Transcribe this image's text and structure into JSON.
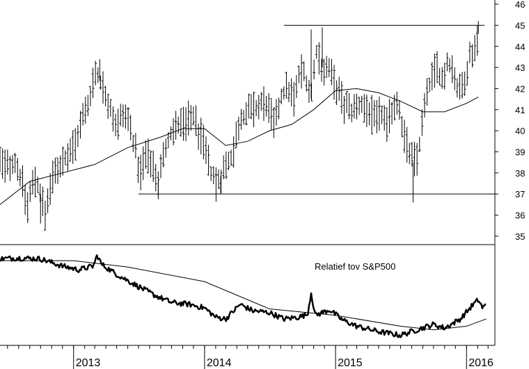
{
  "chart_data": [
    {
      "type": "ohlc",
      "panel": "price",
      "x_axis": {
        "type": "date",
        "range": [
          "2012-06-10",
          "2016-03-20"
        ],
        "tick_labels": [
          "2013",
          "2014",
          "2015",
          "2016"
        ],
        "tick_dates": [
          "2013-01-01",
          "2014-01-01",
          "2015-01-01",
          "2016-01-01"
        ]
      },
      "y_axis": {
        "range": [
          34.6,
          46.2
        ],
        "side": "right",
        "ticks": [
          35,
          36,
          37,
          38,
          39,
          40,
          41,
          42,
          43,
          44,
          45,
          46
        ]
      },
      "grid": false,
      "series": [
        {
          "kind": "price_bars",
          "anchors": [
            [
              "2012-06-10",
              38.5
            ],
            [
              "2012-07-01",
              38.3
            ],
            [
              "2012-07-20",
              38.6
            ],
            [
              "2012-08-10",
              37.6
            ],
            [
              "2012-08-25",
              36.4
            ],
            [
              "2012-09-15",
              37.8
            ],
            [
              "2012-10-01",
              37.0
            ],
            [
              "2012-10-14",
              36.0
            ],
            [
              "2012-10-28",
              37.4
            ],
            [
              "2012-11-15",
              38.2
            ],
            [
              "2012-12-10",
              38.8
            ],
            [
              "2013-01-05",
              39.4
            ],
            [
              "2013-01-25",
              40.5
            ],
            [
              "2013-02-10",
              41.2
            ],
            [
              "2013-03-01",
              42.8
            ],
            [
              "2013-03-20",
              42.2
            ],
            [
              "2013-04-10",
              41.3
            ],
            [
              "2013-05-01",
              40.2
            ],
            [
              "2013-05-20",
              40.7
            ],
            [
              "2013-06-05",
              40.4
            ],
            [
              "2013-06-20",
              39.2
            ],
            [
              "2013-07-05",
              38.0
            ],
            [
              "2013-07-20",
              38.9
            ],
            [
              "2013-08-10",
              38.5
            ],
            [
              "2013-08-25",
              37.6
            ],
            [
              "2013-09-20",
              39.6
            ],
            [
              "2013-10-10",
              40.1
            ],
            [
              "2013-11-10",
              40.4
            ],
            [
              "2013-12-01",
              40.7
            ],
            [
              "2014-01-01",
              39.2
            ],
            [
              "2014-01-20",
              37.9
            ],
            [
              "2014-02-05",
              37.5
            ],
            [
              "2014-02-25",
              38.2
            ],
            [
              "2014-03-20",
              38.9
            ],
            [
              "2014-04-10",
              40.6
            ],
            [
              "2014-05-05",
              40.9
            ],
            [
              "2014-05-25",
              41.0
            ],
            [
              "2014-06-20",
              41.4
            ],
            [
              "2014-07-15",
              40.2
            ],
            [
              "2014-08-01",
              41.5
            ],
            [
              "2014-08-20",
              42.0
            ],
            [
              "2014-09-10",
              41.5
            ],
            [
              "2014-09-25",
              42.9
            ],
            [
              "2014-10-10",
              42.5
            ],
            [
              "2014-10-25",
              41.5
            ],
            [
              "2014-11-10",
              43.9
            ],
            [
              "2014-11-25",
              43.0
            ],
            [
              "2014-12-15",
              42.8
            ],
            [
              "2015-01-05",
              42.0
            ],
            [
              "2015-01-25",
              41.2
            ],
            [
              "2015-02-15",
              40.9
            ],
            [
              "2015-03-10",
              41.2
            ],
            [
              "2015-04-01",
              41.1
            ],
            [
              "2015-04-20",
              40.5
            ],
            [
              "2015-05-10",
              40.8
            ],
            [
              "2015-05-25",
              40.2
            ],
            [
              "2015-06-10",
              41.2
            ],
            [
              "2015-06-25",
              41.5
            ],
            [
              "2015-07-05",
              40.3
            ],
            [
              "2015-07-20",
              39.2
            ],
            [
              "2015-08-05",
              38.5
            ],
            [
              "2015-08-20",
              38.9
            ],
            [
              "2015-09-05",
              41.0
            ],
            [
              "2015-09-20",
              42.1
            ],
            [
              "2015-10-10",
              43.1
            ],
            [
              "2015-10-25",
              42.4
            ],
            [
              "2015-11-10",
              43.3
            ],
            [
              "2015-11-25",
              42.9
            ],
            [
              "2015-12-10",
              41.7
            ],
            [
              "2015-12-25",
              42.4
            ],
            [
              "2016-01-10",
              43.5
            ],
            [
              "2016-01-25",
              44.0
            ],
            [
              "2016-02-03",
              44.6
            ]
          ],
          "extremes": [
            [
              "2012-10-01",
              35.6
            ],
            [
              "2013-03-15",
              43.4
            ],
            [
              "2013-08-25",
              36.9
            ],
            [
              "2014-02-15",
              37.0
            ],
            [
              "2014-10-25",
              44.8
            ],
            [
              "2014-11-25",
              44.9
            ],
            [
              "2015-08-05",
              36.6
            ],
            [
              "2016-02-03",
              45.2
            ]
          ]
        },
        {
          "kind": "moving_average",
          "points": [
            [
              "2012-06-10",
              36.5
            ],
            [
              "2012-09-01",
              37.6
            ],
            [
              "2012-12-01",
              38.0
            ],
            [
              "2013-03-01",
              38.4
            ],
            [
              "2013-06-01",
              39.2
            ],
            [
              "2013-09-01",
              39.7
            ],
            [
              "2013-11-01",
              40.1
            ],
            [
              "2014-01-01",
              40.1
            ],
            [
              "2014-03-01",
              39.3
            ],
            [
              "2014-05-01",
              39.5
            ],
            [
              "2014-07-01",
              40.0
            ],
            [
              "2014-09-01",
              40.3
            ],
            [
              "2014-11-01",
              41.0
            ],
            [
              "2015-01-01",
              41.9
            ],
            [
              "2015-03-01",
              42.0
            ],
            [
              "2015-05-01",
              41.8
            ],
            [
              "2015-07-01",
              41.4
            ],
            [
              "2015-09-01",
              40.9
            ],
            [
              "2015-11-01",
              40.9
            ],
            [
              "2016-01-01",
              41.3
            ],
            [
              "2016-02-03",
              41.6
            ]
          ]
        },
        {
          "kind": "horizontal_line",
          "y": 45.0,
          "x_range": [
            "2014-08-10",
            "2016-02-20"
          ]
        },
        {
          "kind": "horizontal_line",
          "y": 37.0,
          "x_range": [
            "2013-07-01",
            "2016-03-20"
          ]
        }
      ]
    },
    {
      "type": "line",
      "panel": "relative",
      "annotation": "Relatief tov S&P500",
      "series": [
        {
          "kind": "relative_strength",
          "points": [
            [
              "2012-06-10",
              0.92
            ],
            [
              "2012-08-01",
              0.93
            ],
            [
              "2012-10-01",
              0.92
            ],
            [
              "2012-12-01",
              0.84
            ],
            [
              "2013-01-15",
              0.8
            ],
            [
              "2013-02-25",
              0.84
            ],
            [
              "2013-03-08",
              0.96
            ],
            [
              "2013-03-20",
              0.86
            ],
            [
              "2013-05-01",
              0.75
            ],
            [
              "2013-06-15",
              0.65
            ],
            [
              "2013-08-15",
              0.52
            ],
            [
              "2013-10-01",
              0.44
            ],
            [
              "2013-11-20",
              0.42
            ],
            [
              "2014-01-01",
              0.38
            ],
            [
              "2014-02-01",
              0.28
            ],
            [
              "2014-03-01",
              0.26
            ],
            [
              "2014-04-10",
              0.42
            ],
            [
              "2014-05-15",
              0.35
            ],
            [
              "2014-07-01",
              0.33
            ],
            [
              "2014-08-10",
              0.26
            ],
            [
              "2014-09-20",
              0.28
            ],
            [
              "2014-10-15",
              0.31
            ],
            [
              "2014-10-25",
              0.55
            ],
            [
              "2014-11-05",
              0.3
            ],
            [
              "2014-12-15",
              0.36
            ],
            [
              "2015-01-20",
              0.25
            ],
            [
              "2015-03-01",
              0.18
            ],
            [
              "2015-05-01",
              0.12
            ],
            [
              "2015-07-01",
              0.08
            ],
            [
              "2015-08-15",
              0.14
            ],
            [
              "2015-10-01",
              0.2
            ],
            [
              "2015-11-01",
              0.16
            ],
            [
              "2015-12-15",
              0.26
            ],
            [
              "2016-01-15",
              0.4
            ],
            [
              "2016-02-03",
              0.47
            ],
            [
              "2016-02-15",
              0.38
            ],
            [
              "2016-02-25",
              0.42
            ]
          ]
        },
        {
          "kind": "moving_average",
          "points": [
            [
              "2012-06-10",
              0.9
            ],
            [
              "2013-01-01",
              0.9
            ],
            [
              "2013-06-01",
              0.83
            ],
            [
              "2014-01-01",
              0.67
            ],
            [
              "2014-07-01",
              0.37
            ],
            [
              "2015-01-01",
              0.3
            ],
            [
              "2015-07-01",
              0.18
            ],
            [
              "2015-10-01",
              0.14
            ],
            [
              "2016-01-01",
              0.18
            ],
            [
              "2016-02-25",
              0.26
            ]
          ]
        }
      ]
    }
  ]
}
